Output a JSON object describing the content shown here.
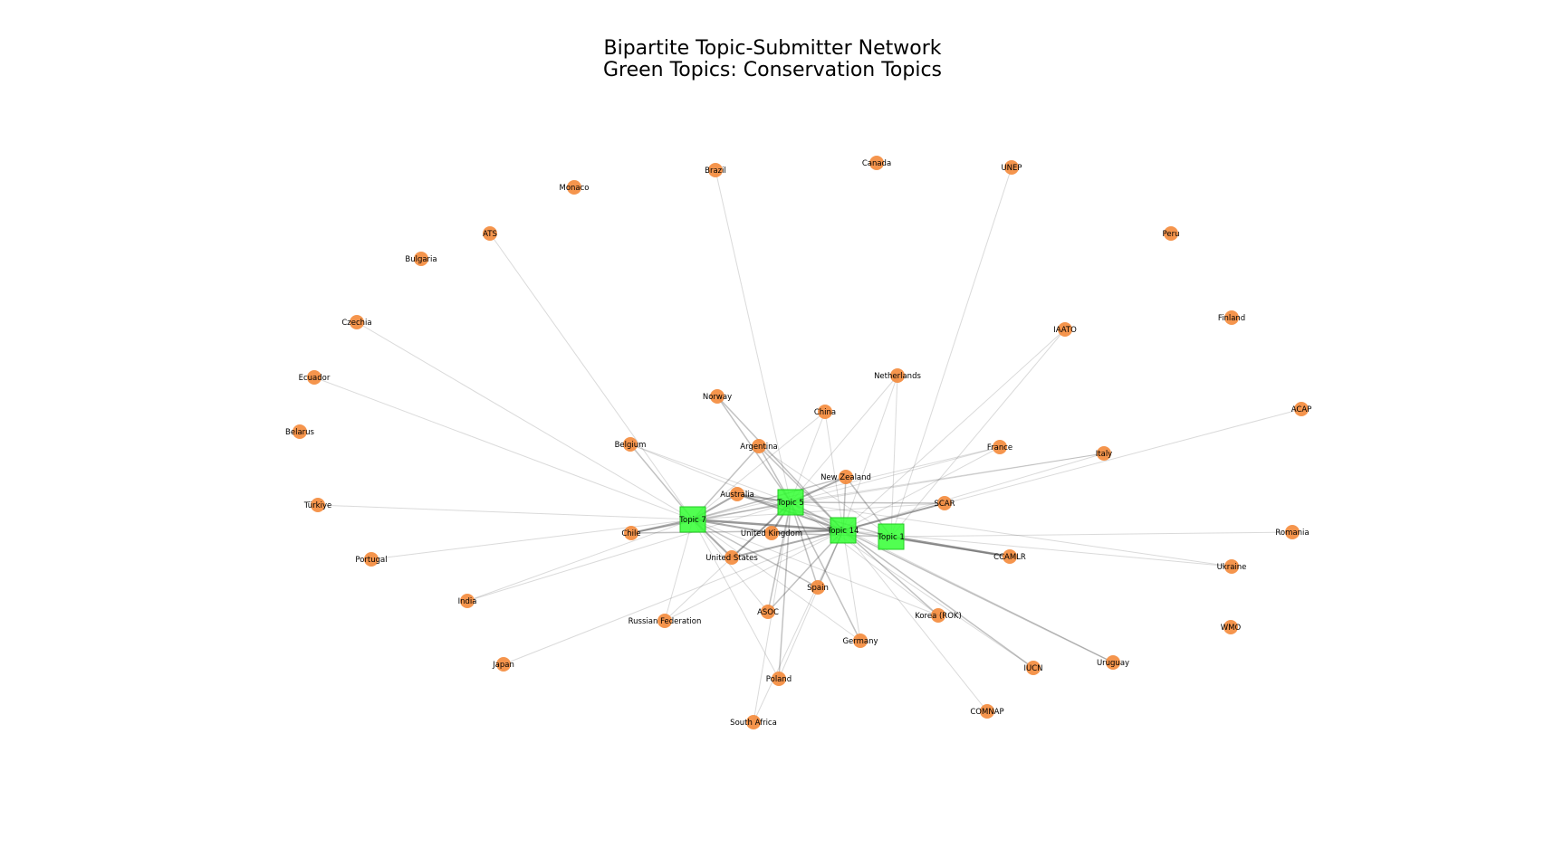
{
  "title": {
    "line1": "Bipartite Topic-Submitter Network",
    "line2": "Green Topics: Conservation Topics"
  },
  "colors": {
    "topic_node": "#33ff33",
    "topic_border": "#22cc22",
    "submitter_node": "#f4893a",
    "edge": "#555555"
  },
  "topics": [
    "Topic 5",
    "Topic 7",
    "Topic 14",
    "Topic 1"
  ],
  "submitters": [
    "Monaco",
    "Brazil",
    "Canada",
    "UNEP",
    "ATS",
    "Bulgaria",
    "Peru",
    "Czechia",
    "Finland",
    "IAATO",
    "Ecuador",
    "Netherlands",
    "Norway",
    "China",
    "ACAP",
    "Belarus",
    "Belgium",
    "Argentina",
    "France",
    "Italy",
    "New Zealand",
    "Australia",
    "Türkiye",
    "SCAR",
    "United Kingdom",
    "Chile",
    "Romania",
    "United States",
    "CCAMLR",
    "Portugal",
    "Ukraine",
    "Spain",
    "India",
    "ASOC",
    "Russian Federation",
    "Korea (ROK)",
    "WMO",
    "Germany",
    "Japan",
    "Uruguay",
    "IUCN",
    "Poland",
    "COMNAP",
    "South Africa"
  ],
  "edges": [
    [
      "Brazil",
      "Topic 5",
      1
    ],
    [
      "UNEP",
      "Topic 1",
      1
    ],
    [
      "ATS",
      "Topic 7",
      1
    ],
    [
      "Czechia",
      "Topic 7",
      1
    ],
    [
      "Ecuador",
      "Topic 7",
      1
    ],
    [
      "IAATO",
      "Topic 14",
      1
    ],
    [
      "IAATO",
      "Topic 1",
      1
    ],
    [
      "Netherlands",
      "Topic 5",
      1
    ],
    [
      "Netherlands",
      "Topic 14",
      1
    ],
    [
      "Netherlands",
      "Topic 1",
      1
    ],
    [
      "Norway",
      "Topic 5",
      2
    ],
    [
      "Norway",
      "Topic 14",
      2
    ],
    [
      "China",
      "Topic 5",
      1
    ],
    [
      "China",
      "Topic 14",
      1
    ],
    [
      "China",
      "Topic 7",
      1
    ],
    [
      "ACAP",
      "Topic 14",
      1
    ],
    [
      "Belgium",
      "Topic 7",
      2
    ],
    [
      "Belgium",
      "Topic 5",
      1
    ],
    [
      "Belgium",
      "Topic 14",
      1
    ],
    [
      "Argentina",
      "Topic 5",
      2
    ],
    [
      "Argentina",
      "Topic 7",
      2
    ],
    [
      "Argentina",
      "Topic 14",
      2
    ],
    [
      "Argentina",
      "Topic 1",
      1
    ],
    [
      "France",
      "Topic 5",
      1
    ],
    [
      "France",
      "Topic 14",
      1
    ],
    [
      "France",
      "Topic 7",
      1
    ],
    [
      "Italy",
      "Topic 5",
      1
    ],
    [
      "Italy",
      "Topic 14",
      1
    ],
    [
      "Italy",
      "Topic 7",
      1
    ],
    [
      "New Zealand",
      "Topic 5",
      3
    ],
    [
      "New Zealand",
      "Topic 14",
      2
    ],
    [
      "New Zealand",
      "Topic 7",
      2
    ],
    [
      "New Zealand",
      "Topic 1",
      2
    ],
    [
      "Australia",
      "Topic 7",
      3
    ],
    [
      "Australia",
      "Topic 5",
      3
    ],
    [
      "Australia",
      "Topic 14",
      3
    ],
    [
      "Australia",
      "Topic 1",
      2
    ],
    [
      "Türkiye",
      "Topic 7",
      1
    ],
    [
      "SCAR",
      "Topic 14",
      3
    ],
    [
      "SCAR",
      "Topic 5",
      2
    ],
    [
      "SCAR",
      "Topic 7",
      1
    ],
    [
      "United Kingdom",
      "Topic 5",
      3
    ],
    [
      "United Kingdom",
      "Topic 7",
      3
    ],
    [
      "United Kingdom",
      "Topic 14",
      3
    ],
    [
      "United Kingdom",
      "Topic 1",
      2
    ],
    [
      "Chile",
      "Topic 7",
      3
    ],
    [
      "Chile",
      "Topic 5",
      2
    ],
    [
      "Chile",
      "Topic 14",
      2
    ],
    [
      "Romania",
      "Topic 1",
      1
    ],
    [
      "United States",
      "Topic 7",
      3
    ],
    [
      "United States",
      "Topic 5",
      3
    ],
    [
      "United States",
      "Topic 14",
      3
    ],
    [
      "CCAMLR",
      "Topic 1",
      4
    ],
    [
      "CCAMLR",
      "Topic 14",
      2
    ],
    [
      "Portugal",
      "Topic 7",
      1
    ],
    [
      "Ukraine",
      "Topic 14",
      1
    ],
    [
      "Ukraine",
      "Topic 5",
      1
    ],
    [
      "Spain",
      "Topic 7",
      2
    ],
    [
      "Spain",
      "Topic 5",
      2
    ],
    [
      "Spain",
      "Topic 14",
      2
    ],
    [
      "India",
      "Topic 7",
      1
    ],
    [
      "India",
      "Topic 5",
      1
    ],
    [
      "ASOC",
      "Topic 5",
      2
    ],
    [
      "ASOC",
      "Topic 14",
      2
    ],
    [
      "ASOC",
      "Topic 7",
      1
    ],
    [
      "Russian Federation",
      "Topic 7",
      1
    ],
    [
      "Russian Federation",
      "Topic 14",
      1
    ],
    [
      "Russian Federation",
      "Topic 5",
      1
    ],
    [
      "Korea (ROK)",
      "Topic 14",
      2
    ],
    [
      "Korea (ROK)",
      "Topic 7",
      1
    ],
    [
      "Korea (ROK)",
      "Topic 5",
      1
    ],
    [
      "Germany",
      "Topic 5",
      2
    ],
    [
      "Germany",
      "Topic 14",
      1
    ],
    [
      "Germany",
      "Topic 7",
      1
    ],
    [
      "Japan",
      "Topic 14",
      1
    ],
    [
      "Uruguay",
      "Topic 14",
      2
    ],
    [
      "Uruguay",
      "Topic 5",
      1
    ],
    [
      "IUCN",
      "Topic 14",
      2
    ],
    [
      "IUCN",
      "Topic 5",
      1
    ],
    [
      "Poland",
      "Topic 5",
      2
    ],
    [
      "Poland",
      "Topic 7",
      1
    ],
    [
      "Poland",
      "Topic 14",
      1
    ],
    [
      "COMNAP",
      "Topic 14",
      1
    ],
    [
      "South Africa",
      "Topic 5",
      1
    ],
    [
      "South Africa",
      "Topic 14",
      1
    ],
    [
      "Topic 5",
      "Topic 14",
      2
    ],
    [
      "Topic 7",
      "Topic 14",
      4
    ]
  ]
}
